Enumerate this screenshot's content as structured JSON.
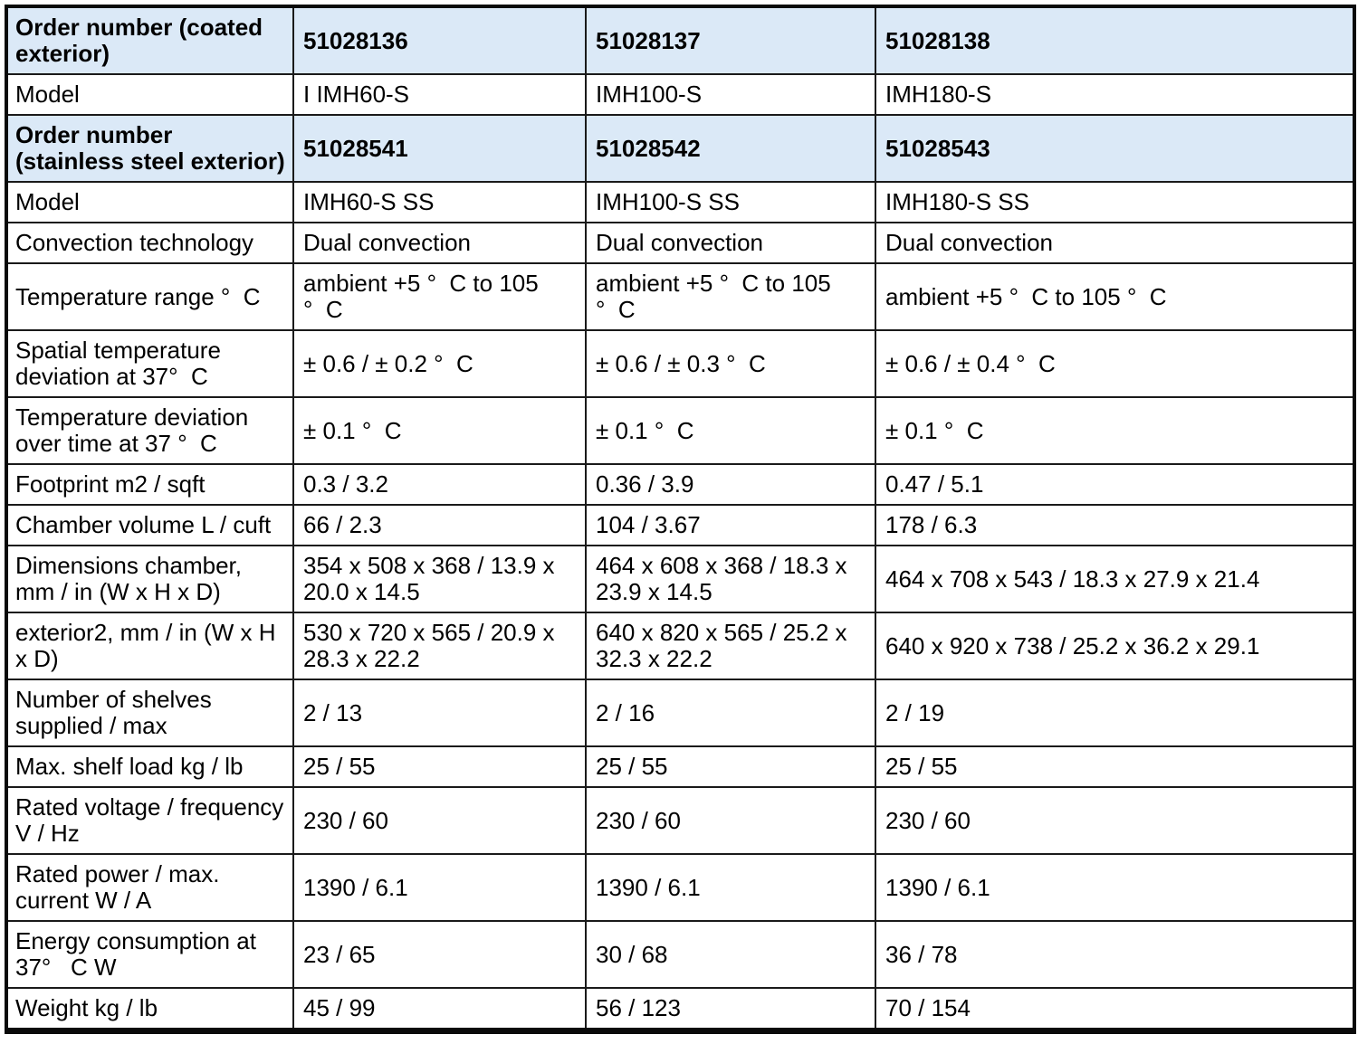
{
  "colors": {
    "header_row_bg": "#dbe9f7",
    "border": "#1a1a1a",
    "text": "#000000",
    "page_bg": "#ffffff"
  },
  "table": {
    "rows": [
      {
        "kind": "order",
        "label": "Order number (coated\nexterior)",
        "values": [
          "51028136",
          "51028137",
          "51028138"
        ]
      },
      {
        "kind": "normal",
        "label": "Model",
        "values": [
          "I IMH60-S",
          "IMH100-S",
          "IMH180-S"
        ]
      },
      {
        "kind": "order",
        "label": "Order number\n(stainless steel exterior)",
        "values": [
          "51028541",
          "51028542",
          "51028543"
        ]
      },
      {
        "kind": "normal",
        "label": "Model",
        "values": [
          "IMH60-S SS",
          "IMH100-S SS",
          "IMH180-S SS"
        ]
      },
      {
        "kind": "normal",
        "label": "Convection technology",
        "values": [
          "Dual convection",
          "Dual convection",
          "Dual convection"
        ]
      },
      {
        "kind": "normal",
        "label": "Temperature range °  C",
        "values": [
          "ambient +5 °  C to 105\n°  C",
          "ambient +5 °  C to 105\n°  C",
          "ambient +5 °  C to 105 °  C"
        ]
      },
      {
        "kind": "normal",
        "label": "Spatial temperature\ndeviation at 37°  C",
        "values": [
          "± 0.6 / ± 0.2 °  C",
          "± 0.6 / ± 0.3 °  C",
          "± 0.6 / ± 0.4 °  C"
        ]
      },
      {
        "kind": "normal",
        "label": "Temperature deviation\nover time at 37 °  C",
        "values": [
          "± 0.1 °  C",
          "± 0.1 °  C",
          "± 0.1 °  C"
        ]
      },
      {
        "kind": "normal",
        "label": "Footprint m2 / sqft",
        "values": [
          "0.3 / 3.2",
          "0.36 / 3.9",
          "0.47 / 5.1"
        ]
      },
      {
        "kind": "normal",
        "label": "Chamber volume L / cuft",
        "values": [
          "66 / 2.3",
          "104 / 3.67",
          "178 / 6.3"
        ]
      },
      {
        "kind": "normal",
        "label": "Dimensions chamber,\nmm / in (W x H x D)",
        "values": [
          "354 x 508 x 368 / 13.9 x\n20.0 x 14.5",
          "464 x 608 x 368 / 18.3 x\n23.9 x 14.5",
          "464 x 708 x 543 / 18.3 x 27.9 x 21.4"
        ]
      },
      {
        "kind": "normal",
        "label": "exterior2, mm / in (W x H\nx D)",
        "values": [
          "530 x 720 x 565 / 20.9 x\n28.3 x 22.2",
          "640 x 820 x 565 / 25.2 x\n32.3 x 22.2",
          "640 x 920 x 738 / 25.2 x 36.2 x 29.1"
        ]
      },
      {
        "kind": "normal",
        "label": "Number of shelves\nsupplied / max",
        "values": [
          "2 / 13",
          "2 / 16",
          "2 / 19"
        ]
      },
      {
        "kind": "normal",
        "label": "Max. shelf load kg / lb",
        "values": [
          "25 / 55",
          "25 / 55",
          "25 / 55"
        ]
      },
      {
        "kind": "normal",
        "label": "Rated voltage / frequency\nV / Hz",
        "values": [
          "230 / 60",
          "230 / 60",
          "230 / 60"
        ]
      },
      {
        "kind": "normal",
        "label": "Rated power / max.\ncurrent W / A",
        "values": [
          "1390 / 6.1",
          "1390 / 6.1",
          "1390 / 6.1"
        ]
      },
      {
        "kind": "normal",
        "label": "Energy consumption at\n37°   C W",
        "values": [
          "23 / 65",
          "30 / 68",
          "36 / 78"
        ]
      },
      {
        "kind": "normal",
        "label": "Weight kg / lb",
        "values": [
          "45 / 99",
          "56 / 123",
          "70 / 154"
        ]
      }
    ]
  }
}
